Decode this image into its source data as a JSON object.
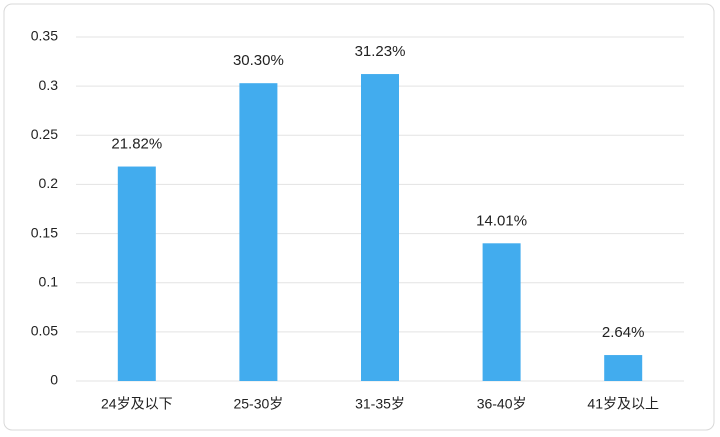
{
  "chart_data": {
    "type": "bar",
    "categories": [
      "24岁及以下",
      "25-30岁",
      "31-35岁",
      "36-40岁",
      "41岁及以上"
    ],
    "values": [
      0.2182,
      0.303,
      0.3123,
      0.1401,
      0.0264
    ],
    "value_labels": [
      "21.82%",
      "30.30%",
      "31.23%",
      "14.01%",
      "2.64%"
    ],
    "color": "#42acee",
    "ylim": [
      0,
      0.35
    ],
    "yticks": [
      0,
      0.05,
      0.1,
      0.15,
      0.2,
      0.25,
      0.3,
      0.35
    ],
    "grid": true
  }
}
